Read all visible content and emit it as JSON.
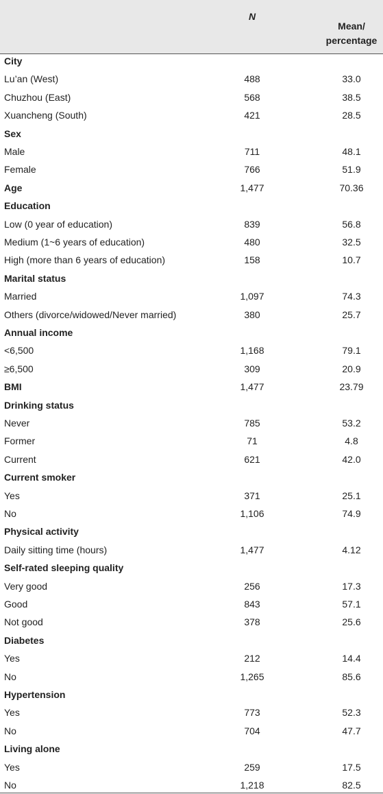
{
  "table": {
    "header": [
      "",
      "N",
      "Mean/ percentage"
    ],
    "rows": [
      {
        "cells": [
          "City",
          "",
          ""
        ],
        "bold": true
      },
      {
        "cells": [
          "Lu’an (West)",
          "488",
          "33.0"
        ]
      },
      {
        "cells": [
          "Chuzhou (East)",
          "568",
          "38.5"
        ]
      },
      {
        "cells": [
          "Xuancheng (South)",
          "421",
          "28.5"
        ]
      },
      {
        "cells": [
          "Sex",
          "",
          ""
        ],
        "bold": true
      },
      {
        "cells": [
          "Male",
          "711",
          "48.1"
        ]
      },
      {
        "cells": [
          "Female",
          "766",
          "51.9"
        ]
      },
      {
        "cells": [
          "Age",
          "1,477",
          "70.36"
        ],
        "bold": true
      },
      {
        "cells": [
          "Education",
          "",
          ""
        ],
        "bold": true
      },
      {
        "cells": [
          "Low (0 year of education)",
          "839",
          "56.8"
        ]
      },
      {
        "cells": [
          "Medium (1~6 years of education)",
          "480",
          "32.5"
        ]
      },
      {
        "cells": [
          "High (more than 6 years of education)",
          "158",
          "10.7"
        ]
      },
      {
        "cells": [
          "Marital status",
          "",
          ""
        ],
        "bold": true
      },
      {
        "cells": [
          "Married",
          "1,097",
          "74.3"
        ]
      },
      {
        "cells": [
          "Others (divorce/widowed/Never married)",
          "380",
          "25.7"
        ]
      },
      {
        "cells": [
          "Annual income",
          "",
          ""
        ],
        "bold": true
      },
      {
        "cells": [
          "<6,500",
          "1,168",
          "79.1"
        ]
      },
      {
        "cells": [
          "≥6,500",
          "309",
          "20.9"
        ]
      },
      {
        "cells": [
          "BMI",
          "1,477",
          "23.79"
        ],
        "bold": true
      },
      {
        "cells": [
          "Drinking status",
          "",
          ""
        ],
        "bold": true
      },
      {
        "cells": [
          "Never",
          "785",
          "53.2"
        ]
      },
      {
        "cells": [
          "Former",
          "71",
          "4.8"
        ]
      },
      {
        "cells": [
          "Current",
          "621",
          "42.0"
        ]
      },
      {
        "cells": [
          "Current smoker",
          "",
          ""
        ],
        "bold": true
      },
      {
        "cells": [
          "Yes",
          "371",
          "25.1"
        ]
      },
      {
        "cells": [
          "No",
          "1,106",
          "74.9"
        ]
      },
      {
        "cells": [
          "Physical activity",
          "",
          ""
        ],
        "bold": true
      },
      {
        "cells": [
          "Daily sitting time (hours)",
          "1,477",
          "4.12"
        ]
      },
      {
        "cells": [
          "Self-rated sleeping quality",
          "",
          ""
        ],
        "bold": true
      },
      {
        "cells": [
          "Very good",
          "256",
          "17.3"
        ]
      },
      {
        "cells": [
          "Good",
          "843",
          "57.1"
        ]
      },
      {
        "cells": [
          "Not good",
          "378",
          "25.6"
        ]
      },
      {
        "cells": [
          "Diabetes",
          "",
          ""
        ],
        "bold": true
      },
      {
        "cells": [
          "Yes",
          "212",
          "14.4"
        ]
      },
      {
        "cells": [
          "No",
          "1,265",
          "85.6"
        ]
      },
      {
        "cells": [
          "Hypertension",
          "",
          ""
        ],
        "bold": true
      },
      {
        "cells": [
          "Yes",
          "773",
          "52.3"
        ]
      },
      {
        "cells": [
          "No",
          "704",
          "47.7"
        ]
      },
      {
        "cells": [
          "Living alone",
          "",
          ""
        ],
        "bold": true
      },
      {
        "cells": [
          "Yes",
          "259",
          "17.5"
        ]
      },
      {
        "cells": [
          "No",
          "1,218",
          "82.5"
        ]
      }
    ]
  }
}
